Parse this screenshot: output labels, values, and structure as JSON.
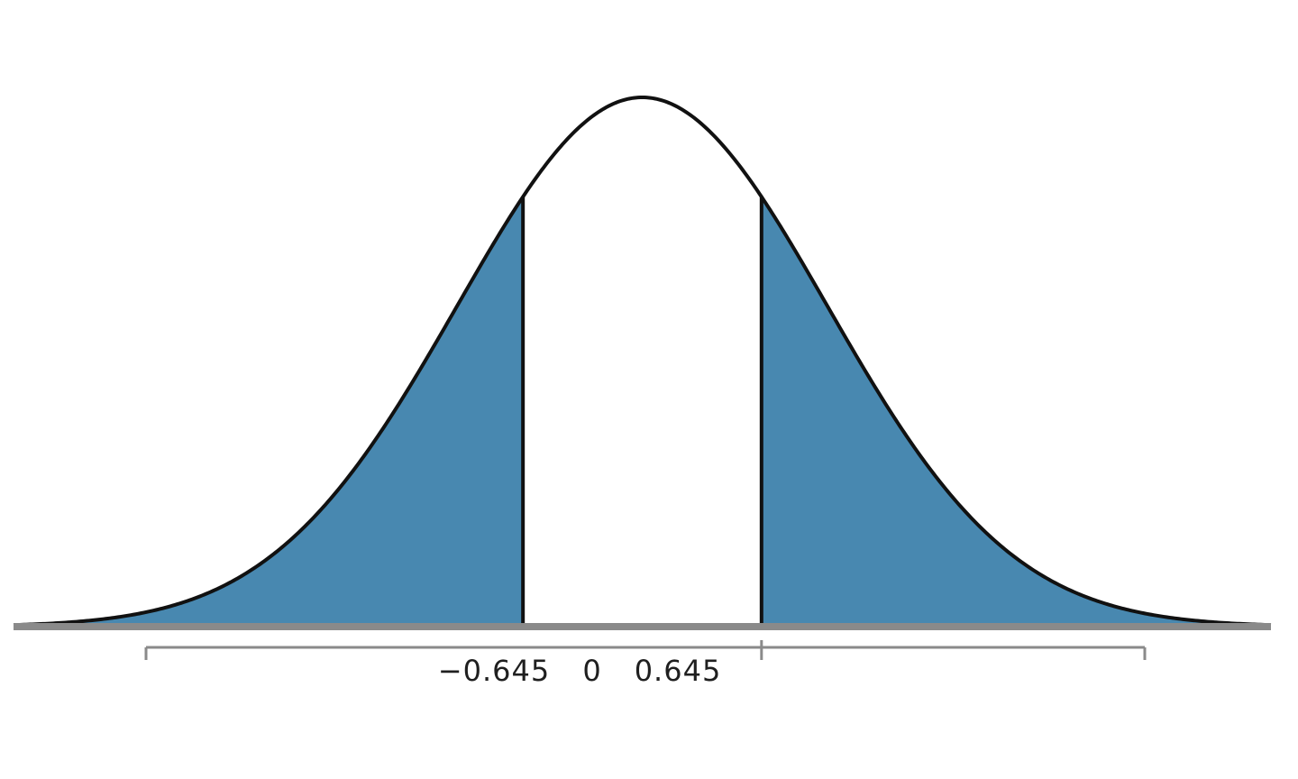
{
  "chart_data": {
    "type": "area",
    "title": "",
    "xlabel": "",
    "ylabel": "",
    "distribution": "normal",
    "mean": 0,
    "sd": 1,
    "xlim": [
      -3.4,
      3.4
    ],
    "ylim": [
      0,
      0.4
    ],
    "shaded_regions": [
      {
        "from": -3.4,
        "to": -0.645
      },
      {
        "from": 0.645,
        "to": 3.4
      }
    ],
    "tick_labels": [
      "−0.645",
      "0",
      "0.645"
    ],
    "grid": false
  },
  "colors": {
    "shade": "#4888b0",
    "curve": "#111111",
    "axis": "#8a8a8a",
    "background": "#ffffff"
  }
}
